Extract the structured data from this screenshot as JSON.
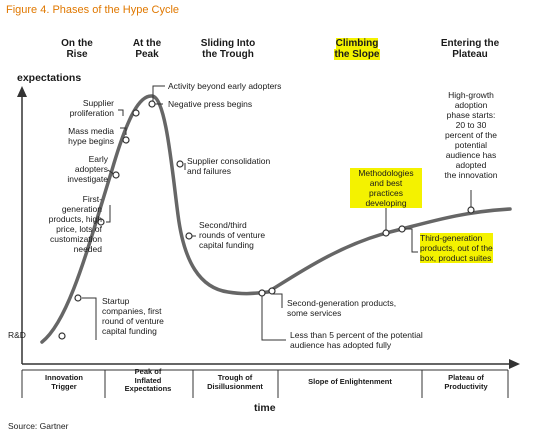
{
  "figure": {
    "caption": "Figure 4. Phases of the Hype Cycle",
    "source": "Source: Gartner"
  },
  "axes": {
    "y_label": "expectations",
    "x_label": "time"
  },
  "phase_titles": [
    {
      "line1": "On the",
      "line2": "Rise"
    },
    {
      "line1": "At the",
      "line2": "Peak"
    },
    {
      "line1": "Sliding Into",
      "line2": "the Trough"
    },
    {
      "line1": "Climbing",
      "line2": "the Slope"
    },
    {
      "line1": "Entering the",
      "line2": "Plateau"
    }
  ],
  "phases": [
    {
      "lines": [
        "Innovation",
        "Trigger"
      ]
    },
    {
      "lines": [
        "Peak of",
        "Inflated",
        "Expectations"
      ]
    },
    {
      "lines": [
        "Trough of",
        "Disillusionment"
      ]
    },
    {
      "lines": [
        "Slope of Enlightenment"
      ]
    },
    {
      "lines": [
        "Plateau of",
        "Productivity"
      ]
    }
  ],
  "annotations": {
    "rnd": "R&D",
    "early_adopters": [
      "Early",
      "adopters",
      "investigate"
    ],
    "mass_media": [
      "Mass media",
      "hype begins"
    ],
    "supplier_prolif": [
      "Supplier",
      "proliferation"
    ],
    "first_gen": [
      "First-",
      "generation",
      "products, high",
      "price, lots of",
      "customization",
      "needed"
    ],
    "startup": [
      "Startup",
      "companies, first",
      "round of venture",
      "capital funding"
    ],
    "activity": "Activity beyond early adopters",
    "negative_press": "Negative press begins",
    "supplier_consol": [
      "Supplier consolidation",
      "and failures"
    ],
    "second_third": [
      "Second/third",
      "rounds of venture",
      "capital funding"
    ],
    "second_gen": [
      "Second-generation products,",
      "some services"
    ],
    "less_than_5": [
      "Less than 5 percent of the potential",
      "audience has adopted fully"
    ],
    "methodologies": [
      "Methodologies",
      "and best",
      "practices",
      "developing"
    ],
    "third_gen": [
      "Third-generation",
      "products, out of the",
      "box, product suites"
    ],
    "high_growth": [
      "High-growth",
      "adoption",
      "phase starts:",
      "20 to 30",
      "percent of the",
      "potential",
      "audience has",
      "adopted",
      "the innovation"
    ]
  },
  "colors": {
    "caption": "#e07800",
    "highlight": "#f4f200",
    "curve": "#555555",
    "axis": "#333333"
  }
}
